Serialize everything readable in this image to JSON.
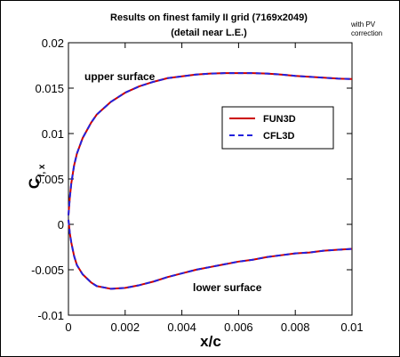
{
  "chart_data": {
    "type": "line",
    "title_line1": "Results on finest family II grid (7169x2049)",
    "title_line2": "(detail near L.E.)",
    "side_note_line1": "with PV",
    "side_note_line2": "correction",
    "xlabel": "x/c",
    "ylabel_main": "C",
    "ylabel_sub": "f, x",
    "xlim": [
      0,
      0.01
    ],
    "ylim": [
      -0.01,
      0.02
    ],
    "x_ticks": [
      0,
      0.002,
      0.004,
      0.006,
      0.008,
      0.01
    ],
    "x_tick_labels": [
      "0",
      "0.002",
      "0.004",
      "0.006",
      "0.008",
      "0.01"
    ],
    "y_ticks": [
      -0.01,
      -0.005,
      0,
      0.005,
      0.01,
      0.015,
      0.02
    ],
    "y_tick_labels": [
      "-0.01",
      "-0.005",
      "0",
      "0.005",
      "0.01",
      "0.015",
      "0.02"
    ],
    "grid": false,
    "legend_placement": "right",
    "annotations": {
      "upper": "upper surface",
      "lower": "lower surface"
    },
    "series": [
      {
        "name": "FUN3D",
        "color": "#cc0000",
        "style": "solid",
        "upper": {
          "x": [
            0,
            5e-05,
            0.0001,
            0.0002,
            0.0003,
            0.0005,
            0.0008,
            0.001,
            0.0015,
            0.002,
            0.0025,
            0.003,
            0.0035,
            0.004,
            0.0045,
            0.005,
            0.0055,
            0.006,
            0.0065,
            0.007,
            0.0075,
            0.008,
            0.0085,
            0.009,
            0.0095,
            0.01
          ],
          "y": [
            0.001,
            0.003,
            0.0045,
            0.0065,
            0.0078,
            0.0095,
            0.0112,
            0.0121,
            0.0135,
            0.0145,
            0.0152,
            0.0157,
            0.0161,
            0.0163,
            0.0165,
            0.0166,
            0.01665,
            0.01665,
            0.01665,
            0.0166,
            0.0165,
            0.01635,
            0.01625,
            0.01615,
            0.01605,
            0.016
          ]
        },
        "lower": {
          "x": [
            0,
            5e-05,
            0.0001,
            0.0002,
            0.0003,
            0.0005,
            0.0008,
            0.001,
            0.0015,
            0.002,
            0.0025,
            0.003,
            0.0035,
            0.004,
            0.0045,
            0.005,
            0.0055,
            0.006,
            0.0065,
            0.007,
            0.0075,
            0.008,
            0.0085,
            0.009,
            0.0095,
            0.01
          ],
          "y": [
            0.0005,
            -0.001,
            -0.002,
            -0.0035,
            -0.0045,
            -0.0055,
            -0.0064,
            -0.0068,
            -0.0071,
            -0.007,
            -0.0067,
            -0.0063,
            -0.0058,
            -0.0054,
            -0.005,
            -0.0047,
            -0.0044,
            -0.0041,
            -0.0039,
            -0.0036,
            -0.0034,
            -0.0032,
            -0.0031,
            -0.0029,
            -0.0028,
            -0.0027
          ]
        }
      },
      {
        "name": "CFL3D",
        "color": "#2222dd",
        "style": "dashed",
        "upper": {
          "x": [
            0,
            5e-05,
            0.0001,
            0.0002,
            0.0003,
            0.0005,
            0.0008,
            0.001,
            0.0015,
            0.002,
            0.0025,
            0.003,
            0.0035,
            0.004,
            0.0045,
            0.005,
            0.0055,
            0.006,
            0.0065,
            0.007,
            0.0075,
            0.008,
            0.0085,
            0.009,
            0.0095,
            0.01
          ],
          "y": [
            0.001,
            0.003,
            0.0045,
            0.0065,
            0.0078,
            0.0095,
            0.0112,
            0.0121,
            0.0135,
            0.0145,
            0.0152,
            0.0157,
            0.0161,
            0.0163,
            0.0165,
            0.0166,
            0.01665,
            0.01665,
            0.01665,
            0.0166,
            0.0165,
            0.01635,
            0.01625,
            0.01615,
            0.01605,
            0.016
          ]
        },
        "lower": {
          "x": [
            0,
            5e-05,
            0.0001,
            0.0002,
            0.0003,
            0.0005,
            0.0008,
            0.001,
            0.0015,
            0.002,
            0.0025,
            0.003,
            0.0035,
            0.004,
            0.0045,
            0.005,
            0.0055,
            0.006,
            0.0065,
            0.007,
            0.0075,
            0.008,
            0.0085,
            0.009,
            0.0095,
            0.01
          ],
          "y": [
            0.0005,
            -0.001,
            -0.002,
            -0.0035,
            -0.0045,
            -0.0055,
            -0.0064,
            -0.0068,
            -0.0071,
            -0.007,
            -0.0067,
            -0.0063,
            -0.0058,
            -0.0054,
            -0.005,
            -0.0047,
            -0.0044,
            -0.0041,
            -0.0039,
            -0.0036,
            -0.0034,
            -0.0032,
            -0.0031,
            -0.0029,
            -0.0028,
            -0.0027
          ]
        }
      }
    ]
  }
}
